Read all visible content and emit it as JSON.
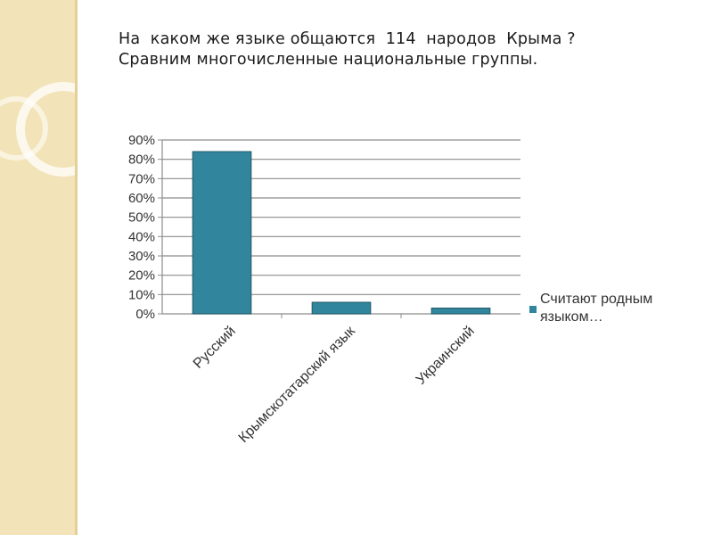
{
  "slide": {
    "title_line1": "На  каком же языке общаются  114  народов  Крыма ?",
    "title_line2": "Сравним многочисленные национальные группы."
  },
  "colors": {
    "bar": "#31859c",
    "band": "#f2e4b8"
  },
  "chart_data": {
    "type": "bar",
    "categories": [
      "Русский",
      "Крымскотатарский язык",
      "Украинский"
    ],
    "series": [
      {
        "name": "Считают родным языком…",
        "values": [
          84,
          6,
          3
        ]
      }
    ],
    "ytick_labels": [
      "0%",
      "10%",
      "20%",
      "30%",
      "40%",
      "50%",
      "60%",
      "70%",
      "80%",
      "90%"
    ],
    "ylim": [
      0,
      90
    ],
    "grid": true,
    "legend": "right"
  }
}
